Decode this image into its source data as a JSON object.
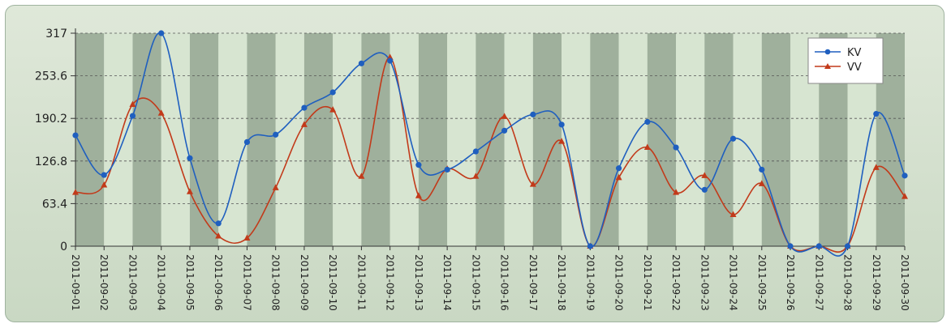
{
  "chart_data": {
    "type": "line",
    "title": "",
    "xlabel": "",
    "ylabel": "",
    "ylim": [
      0,
      317
    ],
    "y_ticks": [
      "0",
      "63.4",
      "126.8",
      "190.2",
      "253.6",
      "317"
    ],
    "smooth": true,
    "grid": "horizontal dashed",
    "legend_position": "top-right",
    "band_colors": [
      "#9fb09c",
      "#d7e5d1"
    ],
    "categories": [
      "2011-09-01",
      "2011-09-02",
      "2011-09-03",
      "2011-09-04",
      "2011-09-05",
      "2011-09-06",
      "2011-09-07",
      "2011-09-08",
      "2011-09-09",
      "2011-09-10",
      "2011-09-11",
      "2011-09-12",
      "2011-09-13",
      "2011-09-14",
      "2011-09-15",
      "2011-09-16",
      "2011-09-17",
      "2011-09-18",
      "2011-09-19",
      "2011-09-20",
      "2011-09-21",
      "2011-09-22",
      "2011-09-23",
      "2011-09-24",
      "2011-09-25",
      "2011-09-26",
      "2011-09-27",
      "2011-09-28",
      "2011-09-29",
      "2011-09-30"
    ],
    "series": [
      {
        "name": "KV",
        "color": "#1f5fbf",
        "marker": "circle",
        "values": [
          165,
          106,
          194,
          317,
          131,
          34,
          155,
          166,
          206,
          229,
          272,
          276,
          121,
          114,
          141,
          172,
          196,
          181,
          0,
          116,
          185,
          147,
          84,
          160,
          114,
          0,
          0,
          0,
          197,
          105
        ]
      },
      {
        "name": "VV",
        "color": "#c23a1a",
        "marker": "triangle",
        "values": [
          80,
          91,
          211,
          198,
          81,
          15,
          12,
          87,
          181,
          203,
          104,
          281,
          75,
          115,
          104,
          193,
          92,
          156,
          0,
          102,
          147,
          80,
          105,
          47,
          93,
          0,
          0,
          0,
          117,
          74
        ]
      }
    ]
  }
}
